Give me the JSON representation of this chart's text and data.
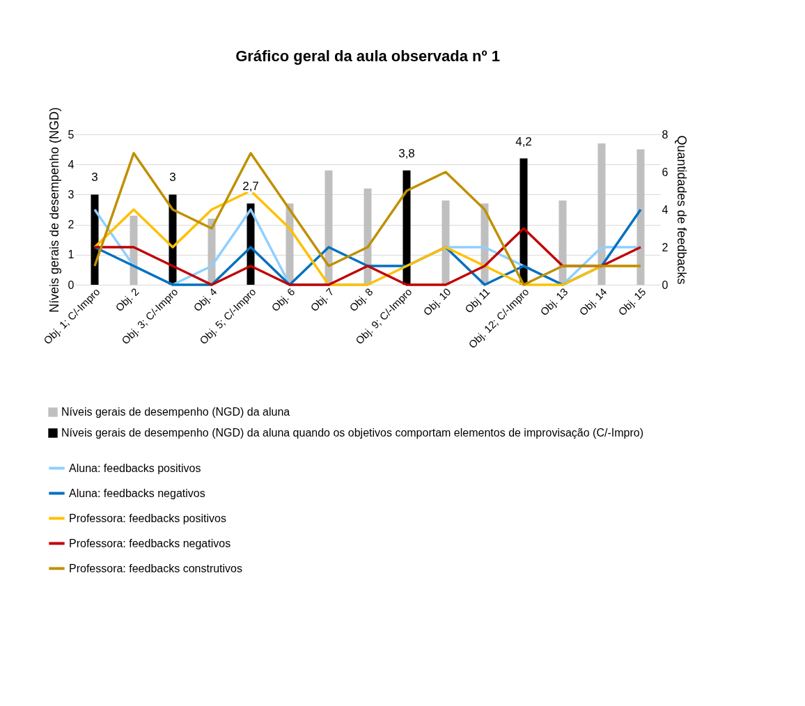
{
  "chart_data": {
    "type": "bar",
    "title": "Gráfico geral da aula observada nº 1",
    "ylabel": "Níveis gerais de desempenho (NGD)",
    "y2label": "Quantidades de feedbacks",
    "categories": [
      "Obj. 1; C/-Impro",
      "Obj. 2",
      "Obj. 3; C/-Impro",
      "Obj. 4",
      "Obj. 5; C/-Impro",
      "Obj. 6",
      "Obj. 7",
      "Obj. 8",
      "Obj. 9; C/-Impro",
      "Obj. 10",
      "Obj 11",
      "Obj. 12; C/-Impro",
      "Obj. 13",
      "Obj. 14",
      "Obj. 15"
    ],
    "ylim": [
      0,
      5
    ],
    "yticks": [
      0,
      1,
      2,
      3,
      4,
      5
    ],
    "y2lim": [
      0,
      8
    ],
    "y2ticks": [
      0,
      2,
      4,
      6,
      8
    ],
    "grid": "y",
    "legend": "bottom",
    "series": [
      {
        "name": "Níveis gerais de desempenho (NGD) da aluna",
        "color": "#bfbfbf",
        "values": [
          null,
          2.3,
          null,
          2.2,
          null,
          2.7,
          3.8,
          3.2,
          null,
          2.8,
          2.7,
          null,
          2.8,
          4.7,
          4.5
        ]
      },
      {
        "name": "Níveis gerais de desempenho (NGD) da aluna quando os objetivos comportam elementos de improvisação (C/-Impro)",
        "color": "#000000",
        "values": [
          3,
          null,
          3,
          null,
          2.7,
          null,
          null,
          null,
          3.8,
          null,
          null,
          4.2,
          null,
          null,
          null
        ],
        "value_labels": [
          "3",
          null,
          "3",
          null,
          "2,7",
          null,
          null,
          null,
          "3,8",
          null,
          null,
          "4,2",
          null,
          null,
          null
        ]
      },
      {
        "name": "Aluna: feedbacks positivos",
        "type": "line",
        "axis": "y2",
        "color": "#8fcfff",
        "values": [
          4,
          1,
          0,
          1,
          4,
          0,
          0,
          0,
          null,
          2,
          2,
          1,
          0,
          2,
          2
        ]
      },
      {
        "name": "Aluna: feedbacks negativos",
        "type": "line",
        "axis": "y2",
        "color": "#0070c0",
        "values": [
          2,
          1,
          0,
          0,
          2,
          0,
          2,
          1,
          1,
          2,
          0,
          1,
          0,
          1,
          4
        ]
      },
      {
        "name": "Professora: feedbacks positivos",
        "type": "line",
        "axis": "y2",
        "color": "#ffc000",
        "values": [
          2,
          4,
          2,
          4,
          5,
          3,
          0,
          0,
          1,
          2,
          1,
          0,
          0,
          1,
          1
        ]
      },
      {
        "name": "Professora: feedbacks negativos",
        "type": "line",
        "axis": "y2",
        "color": "#c00000",
        "values": [
          2,
          2,
          1,
          0,
          1,
          0,
          0,
          1,
          0,
          0,
          1,
          3,
          1,
          1,
          2
        ]
      },
      {
        "name": "Professora: feedbacks construtivos",
        "type": "line",
        "axis": "y2",
        "color": "#bf9000",
        "values": [
          1,
          7,
          4,
          3,
          7,
          4,
          1,
          2,
          5,
          6,
          4,
          0,
          1,
          1,
          1
        ]
      }
    ]
  }
}
